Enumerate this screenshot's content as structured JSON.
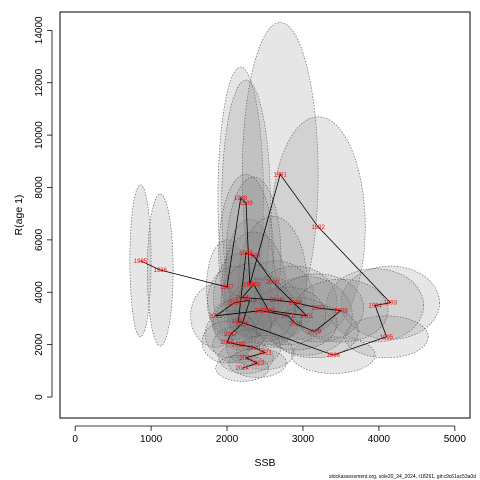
{
  "chart_data": {
    "type": "scatter",
    "xlabel": "SSB",
    "ylabel": "R(age 1)",
    "xlim": [
      -200,
      5200
    ],
    "ylim": [
      -800,
      14700
    ],
    "xticks": [
      0,
      1000,
      2000,
      3000,
      4000,
      5000
    ],
    "yticks": [
      0,
      2000,
      4000,
      6000,
      8000,
      10000,
      12000,
      14000
    ],
    "grid": false,
    "legend": "none",
    "colors": {
      "labels": "#ff0000",
      "ellipse_fill": "#808080",
      "ellipse_stroke": "#555555",
      "path": "#000000"
    },
    "points": [
      {
        "year": "1985",
        "ssb": 860,
        "rec": 5200,
        "sd_x": 140,
        "sd_y": 2900
      },
      {
        "year": "1986",
        "ssb": 1120,
        "rec": 4850,
        "sd_x": 170,
        "sd_y": 2900
      },
      {
        "year": "1987",
        "ssb": 2000,
        "rec": 4200,
        "sd_x": 270,
        "sd_y": 1800
      },
      {
        "year": "1988",
        "ssb": 2180,
        "rec": 7600,
        "sd_x": 300,
        "sd_y": 5000
      },
      {
        "year": "1989",
        "ssb": 2250,
        "rec": 7400,
        "sd_x": 320,
        "sd_y": 4700
      },
      {
        "year": "1990",
        "ssb": 2300,
        "rec": 4300,
        "sd_x": 340,
        "sd_y": 2500
      },
      {
        "year": "1991",
        "ssb": 2700,
        "rec": 8500,
        "sd_x": 500,
        "sd_y": 5800
      },
      {
        "year": "1992",
        "ssb": 3200,
        "rec": 6500,
        "sd_x": 620,
        "sd_y": 4200
      },
      {
        "year": "1993",
        "ssb": 4150,
        "rec": 3600,
        "sd_x": 650,
        "sd_y": 1400
      },
      {
        "year": "1994",
        "ssb": 3950,
        "rec": 3500,
        "sd_x": 640,
        "sd_y": 1400
      },
      {
        "year": "1995",
        "ssb": 4100,
        "rec": 2300,
        "sd_x": 550,
        "sd_y": 800
      },
      {
        "year": "1996",
        "ssb": 3400,
        "rec": 1600,
        "sd_x": 550,
        "sd_y": 700
      },
      {
        "year": "1997",
        "ssb": 2150,
        "rec": 2900,
        "sd_x": 350,
        "sd_y": 900
      },
      {
        "year": "1998",
        "ssb": 2250,
        "rec": 5500,
        "sd_x": 360,
        "sd_y": 3000
      },
      {
        "year": "1999",
        "ssb": 2350,
        "rec": 5400,
        "sd_x": 360,
        "sd_y": 3000
      },
      {
        "year": "2000",
        "ssb": 2600,
        "rec": 4400,
        "sd_x": 450,
        "sd_y": 2500
      },
      {
        "year": "2001",
        "ssb": 3050,
        "rec": 3100,
        "sd_x": 600,
        "sd_y": 1500
      },
      {
        "year": "2002",
        "ssb": 2550,
        "rec": 3300,
        "sd_x": 450,
        "sd_y": 1300
      },
      {
        "year": "2003",
        "ssb": 2350,
        "rec": 4300,
        "sd_x": 420,
        "sd_y": 2000
      },
      {
        "year": "2004",
        "ssb": 2200,
        "rec": 3800,
        "sd_x": 380,
        "sd_y": 1700
      },
      {
        "year": "2005",
        "ssb": 2650,
        "rec": 3700,
        "sd_x": 500,
        "sd_y": 1500
      },
      {
        "year": "2006",
        "ssb": 2900,
        "rec": 3600,
        "sd_x": 550,
        "sd_y": 1400
      },
      {
        "year": "2007",
        "ssb": 3200,
        "rec": 3400,
        "sd_x": 600,
        "sd_y": 1300
      },
      {
        "year": "2008",
        "ssb": 3500,
        "rec": 3300,
        "sd_x": 620,
        "sd_y": 1200
      },
      {
        "year": "2009",
        "ssb": 3150,
        "rec": 2500,
        "sd_x": 580,
        "sd_y": 1000
      },
      {
        "year": "2010",
        "ssb": 2900,
        "rec": 2800,
        "sd_x": 550,
        "sd_y": 1000
      },
      {
        "year": "2011",
        "ssb": 2800,
        "rec": 3100,
        "sd_x": 500,
        "sd_y": 1100
      },
      {
        "year": "2012",
        "ssb": 2450,
        "rec": 3300,
        "sd_x": 450,
        "sd_y": 1200
      },
      {
        "year": "2013",
        "ssb": 1850,
        "rec": 3100,
        "sd_x": 330,
        "sd_y": 1200
      },
      {
        "year": "2014",
        "ssb": 2100,
        "rec": 3600,
        "sd_x": 360,
        "sd_y": 1400
      },
      {
        "year": "2015",
        "ssb": 2300,
        "rec": 3700,
        "sd_x": 380,
        "sd_y": 1400
      },
      {
        "year": "2016",
        "ssb": 2200,
        "rec": 2800,
        "sd_x": 380,
        "sd_y": 1000
      },
      {
        "year": "2017",
        "ssb": 2050,
        "rec": 2400,
        "sd_x": 340,
        "sd_y": 900
      },
      {
        "year": "2018",
        "ssb": 2000,
        "rec": 2100,
        "sd_x": 330,
        "sd_y": 800
      },
      {
        "year": "2019",
        "ssb": 2150,
        "rec": 2000,
        "sd_x": 340,
        "sd_y": 700
      },
      {
        "year": "2020",
        "ssb": 2350,
        "rec": 1900,
        "sd_x": 360,
        "sd_y": 700
      },
      {
        "year": "2021",
        "ssb": 2500,
        "rec": 1700,
        "sd_x": 380,
        "sd_y": 650
      },
      {
        "year": "2022",
        "ssb": 2250,
        "rec": 1500,
        "sd_x": 360,
        "sd_y": 600
      },
      {
        "year": "2023",
        "ssb": 2400,
        "rec": 1300,
        "sd_x": 380,
        "sd_y": 550
      },
      {
        "year": "2024",
        "ssb": 2200,
        "rec": 1100,
        "sd_x": 350,
        "sd_y": 500
      }
    ]
  },
  "footer_text": "stockassessment.org, sole20_24_2024, r18261, git:c9c61ac53a0d"
}
